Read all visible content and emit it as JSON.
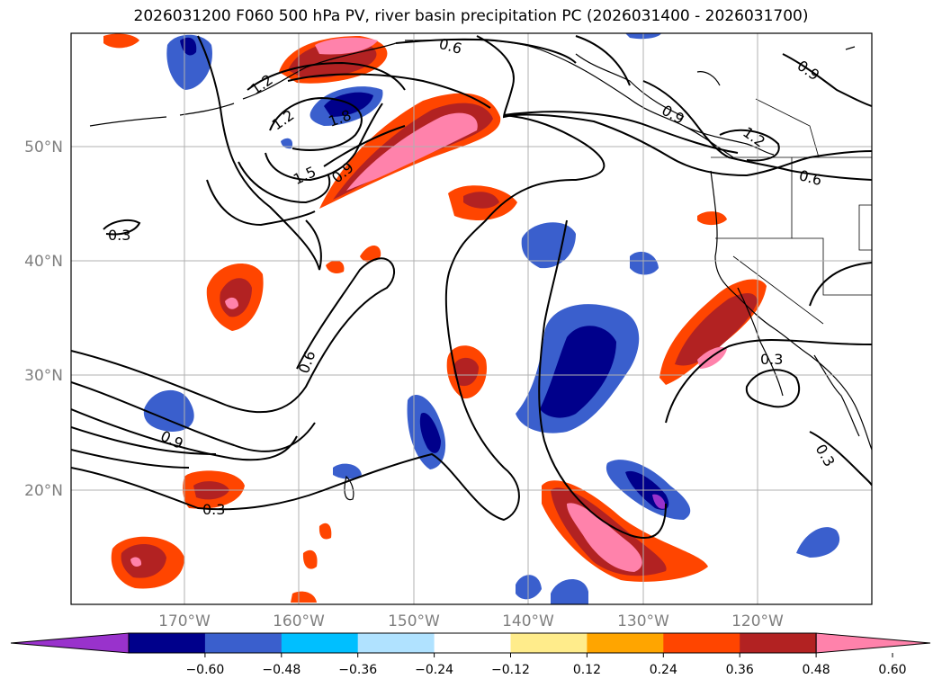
{
  "title": "2026031200 F060 500 hPa PV, river basin precipitation PC (2026031400 - 2026031700)",
  "axes": {
    "lat_labels": [
      "50°N",
      "40°N",
      "30°N",
      "20°N"
    ],
    "lon_labels": [
      "170°W",
      "160°W",
      "150°W",
      "140°W",
      "130°W",
      "120°W"
    ]
  },
  "contour_labels": [
    "0.6",
    "0.9",
    "1.2",
    "1.2",
    "1.8",
    "1.5",
    "0.9",
    "0.9",
    "1.2",
    "0.6",
    "0.3",
    "0.6",
    "0.3",
    "0.9",
    "0.3",
    "0.3"
  ],
  "colorbar": {
    "ticks": [
      "−0.60",
      "−0.48",
      "−0.36",
      "−0.24",
      "−0.12",
      "0.12",
      "0.24",
      "0.36",
      "0.48",
      "0.60"
    ],
    "colors": [
      "#9932cc",
      "#00008b",
      "#3a5fcd",
      "#00bfff",
      "#b0e2ff",
      "#ffffff",
      "#ffec8b",
      "#ffa500",
      "#ff4500",
      "#b22222",
      "#ff82ab"
    ]
  },
  "chart_data": {
    "type": "map",
    "title": "2026031200 F060 500 hPa PV, river basin precipitation PC (2026031400 - 2026031700)",
    "region": {
      "lon_range": [
        -180,
        -110
      ],
      "lat_range": [
        10,
        60
      ]
    },
    "field_contours": {
      "name": "500 hPa PV",
      "levels": [
        0.3,
        0.6,
        0.9,
        1.2,
        1.5,
        1.8
      ]
    },
    "field_shaded": {
      "name": "river basin precipitation PC",
      "levels": [
        -0.6,
        -0.48,
        -0.36,
        -0.24,
        -0.12,
        0.12,
        0.24,
        0.36,
        0.48,
        0.6
      ]
    }
  }
}
